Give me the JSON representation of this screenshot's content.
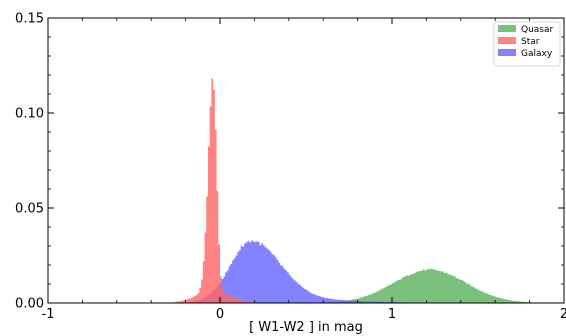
{
  "chart_data": {
    "type": "histogram",
    "xlabel": "[ W1-W2 ] in mag",
    "ylabel": "",
    "xlim": [
      -1,
      2
    ],
    "ylim": [
      0,
      0.15
    ],
    "x_ticks": [
      -1,
      0,
      1,
      2
    ],
    "x_tick_labels": [
      "-1",
      "0",
      "1",
      "2"
    ],
    "y_ticks": [
      0.0,
      0.05,
      0.1,
      0.15
    ],
    "y_tick_labels": [
      "0.00",
      "0.05",
      "0.10",
      "0.15"
    ],
    "grid": false,
    "legend_position": "top-right",
    "bin_width": 0.01,
    "series": [
      {
        "name": "Quasar",
        "color": "#5ab05a",
        "alpha": 0.8,
        "shape": "gaussian",
        "mean": 1.22,
        "sigma": 0.21,
        "peak": 0.0175
      },
      {
        "name": "Star",
        "color": "#ff6464",
        "alpha": 0.8,
        "shape": "peaked",
        "mean": -0.04,
        "sigma_left": 0.028,
        "sigma_right": 0.02,
        "peak": 0.113,
        "wing_sigma": 0.1,
        "wing_peak": 0.006
      },
      {
        "name": "Galaxy",
        "color": "#6464ff",
        "alpha": 0.8,
        "shape": "skewed",
        "mean": 0.18,
        "sigma_left": 0.12,
        "sigma_right": 0.17,
        "peak": 0.032,
        "tail_mean": 0.55,
        "tail_sigma": 0.3,
        "tail_peak": 0.0015
      }
    ]
  }
}
